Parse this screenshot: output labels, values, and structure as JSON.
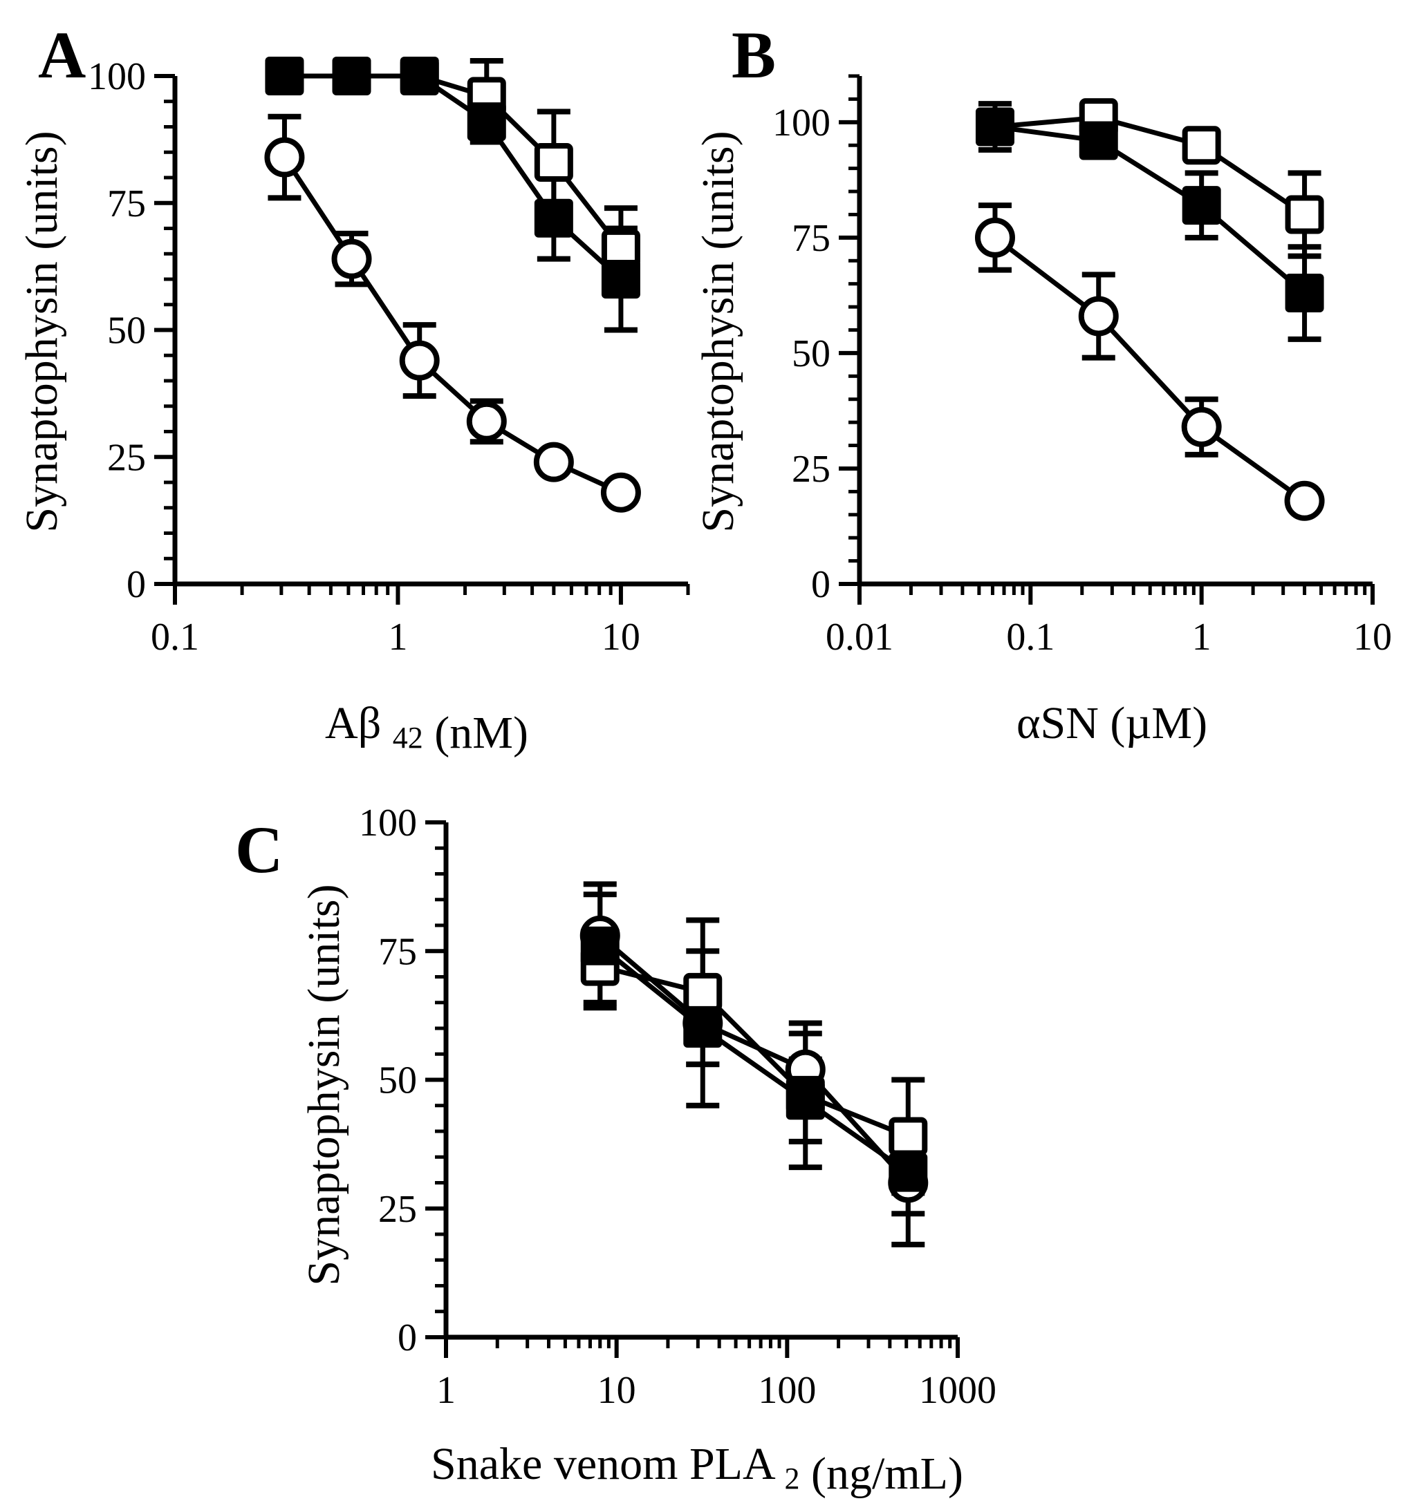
{
  "chart_data": [
    {
      "panel": "A",
      "type": "line",
      "xscale": "log",
      "xlim": [
        0.1,
        20
      ],
      "ylim": [
        0,
        100
      ],
      "xticks": [
        "0.1",
        "1",
        "10"
      ],
      "yticks": [
        "0",
        "25",
        "50",
        "75",
        "100"
      ],
      "xlabel": {
        "main": "Aβ",
        "sub": "42",
        "unit": "(nM)"
      },
      "ylabel": "Synaptophysin (units)",
      "series": [
        {
          "name": "open-circles",
          "marker": "open-circle",
          "x": [
            0.31,
            0.62,
            1.25,
            2.5,
            5,
            10
          ],
          "y": [
            84,
            64,
            44,
            32,
            24,
            18
          ],
          "err": [
            8,
            5,
            7,
            4,
            0,
            0
          ]
        },
        {
          "name": "open-squares",
          "marker": "open-square",
          "x": [
            0.31,
            0.62,
            1.25,
            2.5,
            5,
            10
          ],
          "y": [
            100,
            100,
            100,
            96,
            83,
            66
          ],
          "err": [
            0,
            0,
            0,
            7,
            10,
            8
          ]
        },
        {
          "name": "filled-squares",
          "marker": "filled-square",
          "x": [
            0.31,
            0.62,
            1.25,
            2.5,
            5,
            10
          ],
          "y": [
            100,
            100,
            100,
            91,
            72,
            60
          ],
          "err": [
            3,
            0,
            0,
            4,
            8,
            10
          ]
        }
      ]
    },
    {
      "panel": "B",
      "type": "line",
      "xscale": "log",
      "xlim": [
        0.01,
        10
      ],
      "ylim": [
        0,
        110
      ],
      "xticks": [
        "0.01",
        "0.1",
        "1",
        "10"
      ],
      "yticks": [
        "0",
        "25",
        "50",
        "75",
        "100"
      ],
      "xlabel": {
        "main": "αSN",
        "sub": "",
        "unit": "(µM)"
      },
      "ylabel": "Synaptophysin (units)",
      "series": [
        {
          "name": "open-circles",
          "marker": "open-circle",
          "x": [
            0.062,
            0.25,
            1,
            4
          ],
          "y": [
            75,
            58,
            34,
            18
          ],
          "err": [
            7,
            9,
            6,
            0
          ]
        },
        {
          "name": "open-squares",
          "marker": "open-square",
          "x": [
            0.062,
            0.25,
            1,
            4
          ],
          "y": [
            99,
            101,
            95,
            80
          ],
          "err": [
            0,
            0,
            0,
            9
          ]
        },
        {
          "name": "filled-squares",
          "marker": "filled-square",
          "x": [
            0.062,
            0.25,
            1,
            4
          ],
          "y": [
            99,
            96,
            82,
            63
          ],
          "err": [
            5,
            3,
            7,
            10
          ]
        }
      ]
    },
    {
      "panel": "C",
      "type": "line",
      "xscale": "log",
      "xlim": [
        1,
        1000
      ],
      "ylim": [
        0,
        100
      ],
      "xticks": [
        "1",
        "10",
        "100",
        "1000"
      ],
      "yticks": [
        "0",
        "25",
        "50",
        "75",
        "100"
      ],
      "xlabel": {
        "main": "Snake venom PLA",
        "sub": "2",
        "unit": "(ng/mL)"
      },
      "ylabel": "Synaptophysin (units)",
      "series": [
        {
          "name": "open-circles",
          "marker": "open-circle",
          "x": [
            8,
            32,
            128,
            512
          ],
          "y": [
            78,
            61,
            52,
            30
          ],
          "err": [
            8,
            8,
            7,
            12
          ]
        },
        {
          "name": "open-squares",
          "marker": "open-square",
          "x": [
            8,
            32,
            128,
            512
          ],
          "y": [
            72,
            67,
            47,
            39
          ],
          "err": [
            7,
            14,
            14,
            11
          ]
        },
        {
          "name": "filled-squares",
          "marker": "filled-square",
          "x": [
            8,
            32,
            128,
            512
          ],
          "y": [
            76,
            60,
            46,
            32
          ],
          "err": [
            12,
            15,
            8,
            8
          ]
        }
      ]
    }
  ]
}
